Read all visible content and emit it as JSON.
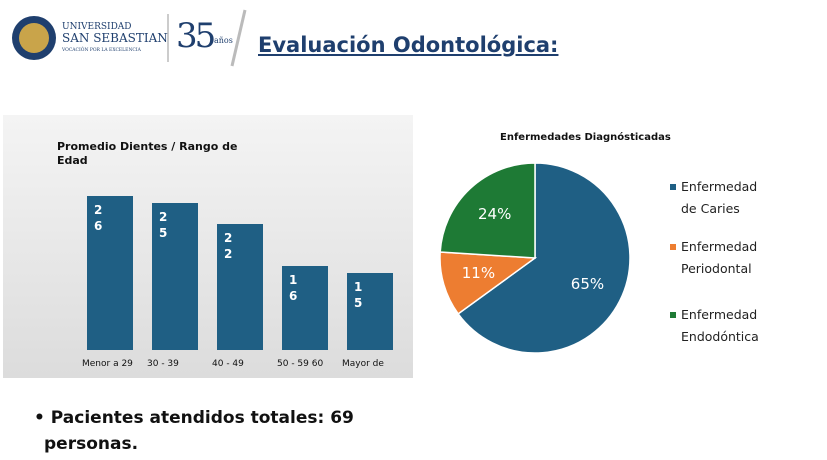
{
  "header": {
    "university": "UNIVERSIDAD",
    "university_name": "SAN SEBASTIAN",
    "motto": "VOCACIÓN POR LA EXCELENCIA",
    "anniversary": "35",
    "anniversary_unit": "años",
    "title": "Evaluación Odontológica:"
  },
  "bullet": "Pacientes atendidos totales: 69 personas.",
  "chart_data": [
    {
      "type": "bar",
      "title": "Promedio Dientes / Rango de Edad",
      "categories": [
        "Menor a 29",
        "30 - 39",
        "40 - 49",
        "50 - 59 60",
        "Mayor de"
      ],
      "values": [
        26,
        25,
        22,
        16,
        15
      ],
      "color": "#1f5f84",
      "ylim": [
        4,
        27
      ]
    },
    {
      "type": "pie",
      "title": "Enfermedades Diagnósticadas",
      "series": [
        {
          "name": "Enfermedad de Caries",
          "color": "#1f5f84",
          "values": [
            65
          ],
          "value_labels": [
            "65%"
          ]
        },
        {
          "name": "Enfermedad Periodontal",
          "color": "#ed7d31",
          "values": [
            11
          ],
          "value_labels": [
            "11%"
          ]
        },
        {
          "name": "Enfermedad Endodóntica",
          "color": "#1e7a35",
          "values": [
            24
          ],
          "value_labels": [
            "24%"
          ]
        }
      ]
    }
  ]
}
